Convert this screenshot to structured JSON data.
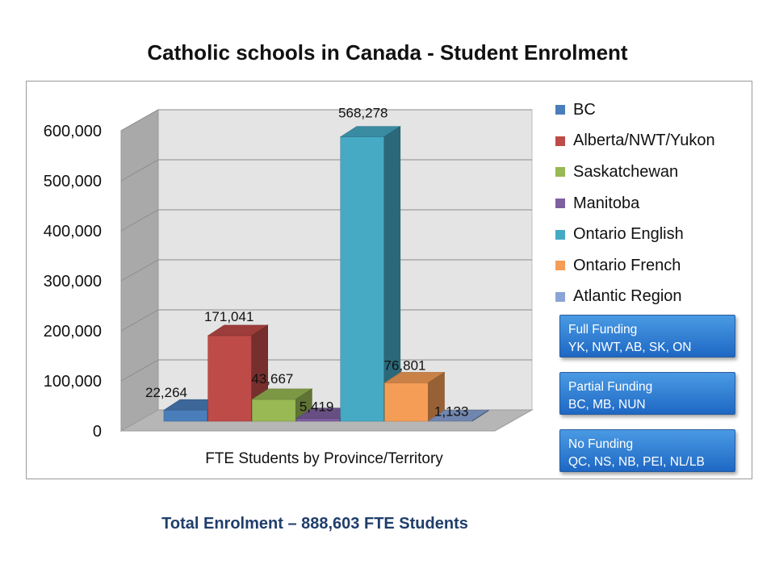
{
  "chart_data": {
    "type": "bar",
    "title": "Catholic schools in Canada - Student Enrolment",
    "xlabel": "FTE Students by Province/Territory",
    "ylabel": "",
    "ylim": [
      0,
      600000
    ],
    "yticks": [
      "0",
      "100,000",
      "200,000",
      "300,000",
      "400,000",
      "500,000",
      "600,000"
    ],
    "grid": true,
    "legend_position": "right",
    "categories": [
      "BC",
      "Alberta/NWT/Yukon",
      "Saskatchewan",
      "Manitoba",
      "Ontario English",
      "Ontario French",
      "Atlantic Region"
    ],
    "values": [
      22264,
      171041,
      43667,
      5419,
      568278,
      76801,
      1133
    ],
    "data_labels": [
      "22,264",
      "171,041",
      "43,667",
      "5,419",
      "568,278",
      "76,801",
      "1,133"
    ],
    "colors": [
      "#4a7ebb",
      "#be4b48",
      "#98b954",
      "#7d60a0",
      "#46aac5",
      "#f59d56",
      "#8aa4d6"
    ]
  },
  "funding": [
    {
      "title": "Full Funding",
      "detail": "YK, NWT, AB, SK, ON"
    },
    {
      "title": "Partial Funding",
      "detail": "BC, MB, NUN"
    },
    {
      "title": "No Funding",
      "detail": "QC, NS, NB, PEI, NL/LB"
    }
  ],
  "footer": {
    "total": "Total Enrolment – 888,603 FTE Students"
  }
}
